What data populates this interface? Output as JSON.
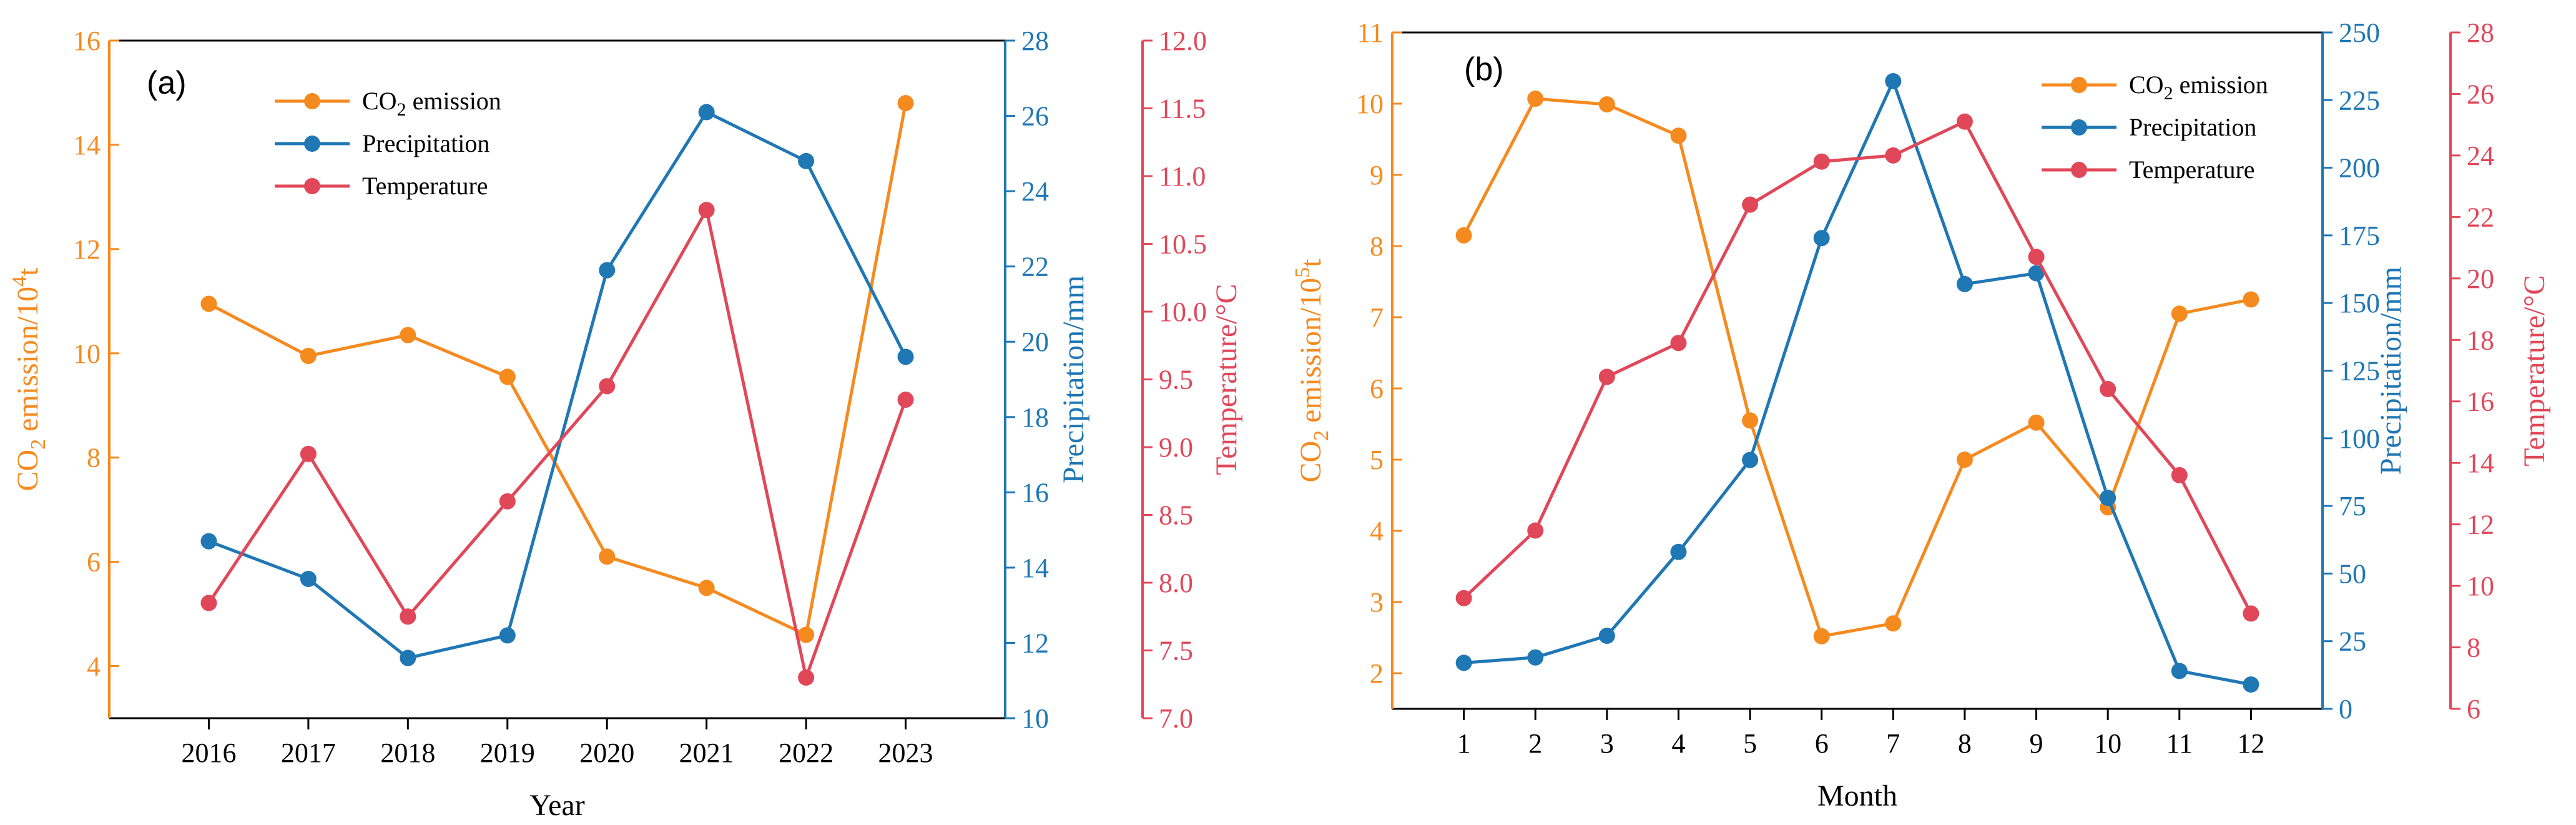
{
  "colors": {
    "co2": "#F58A1F",
    "precipitation": "#1F77B4",
    "temperature": "#E0485A",
    "frame": "#000000"
  },
  "chart_data": [
    {
      "type": "line",
      "panel_label": "(a)",
      "xlabel": "Year",
      "categories": [
        "2016",
        "2017",
        "2018",
        "2019",
        "2020",
        "2021",
        "2022",
        "2023"
      ],
      "axes": [
        {
          "key": "co2",
          "label_main": "CO",
          "label_sub": "2",
          "label_rest": " emission/10",
          "label_sup": "4",
          "label_unit": "t",
          "ylim": [
            3,
            16
          ],
          "ticks": [
            "4",
            "6",
            "8",
            "10",
            "12",
            "14",
            "16"
          ],
          "tick_values": [
            4,
            6,
            8,
            10,
            12,
            14,
            16
          ]
        },
        {
          "key": "precipitation",
          "label": "Precipitation/mm",
          "ylim": [
            10,
            28
          ],
          "ticks": [
            "10",
            "12",
            "14",
            "16",
            "18",
            "20",
            "22",
            "24",
            "26",
            "28"
          ],
          "tick_values": [
            10,
            12,
            14,
            16,
            18,
            20,
            22,
            24,
            26,
            28
          ]
        },
        {
          "key": "temperature",
          "label": "Temperature/°C",
          "ylim": [
            7.0,
            12.0
          ],
          "ticks": [
            "7.0",
            "7.5",
            "8.0",
            "8.5",
            "9.0",
            "9.5",
            "10.0",
            "10.5",
            "11.0",
            "11.5",
            "12.0"
          ],
          "tick_values": [
            7.0,
            7.5,
            8.0,
            8.5,
            9.0,
            9.5,
            10.0,
            10.5,
            11.0,
            11.5,
            12.0
          ]
        }
      ],
      "series": [
        {
          "key": "co2",
          "name_main": "CO",
          "name_sub": "2",
          "name_rest": " emission",
          "axis": 0,
          "values": [
            10.95,
            9.95,
            10.35,
            9.55,
            6.1,
            5.5,
            4.6,
            14.8
          ]
        },
        {
          "key": "precipitation",
          "name": "Precipitation",
          "axis": 1,
          "values": [
            14.7,
            13.7,
            11.6,
            12.2,
            21.9,
            26.1,
            24.8,
            19.6
          ]
        },
        {
          "key": "temperature",
          "name": "Temperature",
          "axis": 2,
          "values": [
            7.85,
            8.95,
            7.75,
            8.6,
            9.45,
            10.75,
            7.3,
            9.35
          ]
        }
      ]
    },
    {
      "type": "line",
      "panel_label": "(b)",
      "xlabel": "Month",
      "categories": [
        "1",
        "2",
        "3",
        "4",
        "5",
        "6",
        "7",
        "8",
        "9",
        "10",
        "11",
        "12"
      ],
      "axes": [
        {
          "key": "co2",
          "label_main": "CO",
          "label_sub": "2",
          "label_rest": " emission/10",
          "label_sup": "5",
          "label_unit": "t",
          "ylim": [
            1.5,
            11
          ],
          "ticks": [
            "2",
            "3",
            "4",
            "5",
            "6",
            "7",
            "8",
            "9",
            "10",
            "11"
          ],
          "tick_values": [
            2,
            3,
            4,
            5,
            6,
            7,
            8,
            9,
            10,
            11
          ]
        },
        {
          "key": "precipitation",
          "label": "Precipitation/mm",
          "ylim": [
            0,
            250
          ],
          "ticks": [
            "0",
            "25",
            "50",
            "75",
            "100",
            "125",
            "150",
            "175",
            "200",
            "225",
            "250"
          ],
          "tick_values": [
            0,
            25,
            50,
            75,
            100,
            125,
            150,
            175,
            200,
            225,
            250
          ]
        },
        {
          "key": "temperature",
          "label": "Temperature/°C",
          "ylim": [
            6,
            28
          ],
          "ticks": [
            "6",
            "8",
            "10",
            "12",
            "14",
            "16",
            "18",
            "20",
            "22",
            "24",
            "26",
            "28"
          ],
          "tick_values": [
            6,
            8,
            10,
            12,
            14,
            16,
            18,
            20,
            22,
            24,
            26,
            28
          ]
        }
      ],
      "series": [
        {
          "key": "co2",
          "name_main": "CO",
          "name_sub": "2",
          "name_rest": " emission",
          "axis": 0,
          "values": [
            8.15,
            10.07,
            9.99,
            9.55,
            5.55,
            2.52,
            2.7,
            5.0,
            5.52,
            4.33,
            7.05,
            7.25
          ]
        },
        {
          "key": "precipitation",
          "name": "Precipitation",
          "axis": 1,
          "values": [
            17,
            19,
            27,
            58,
            92,
            174,
            232,
            157,
            161,
            78,
            14,
            9
          ]
        },
        {
          "key": "temperature",
          "name": "Temperature",
          "axis": 2,
          "values": [
            9.6,
            11.8,
            16.8,
            17.9,
            22.4,
            23.8,
            24.0,
            25.1,
            20.7,
            16.4,
            13.6,
            9.1
          ]
        }
      ]
    }
  ]
}
